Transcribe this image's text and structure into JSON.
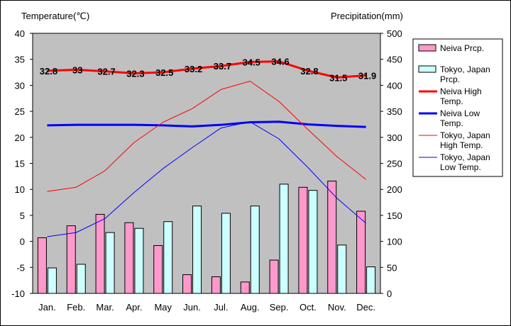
{
  "chart_data": {
    "type": "bar+line",
    "y_left_label": "Temperature(℃)",
    "y_right_label": "Precipitation(mm)",
    "categories": [
      "Jan.",
      "Feb.",
      "Mar.",
      "Apr.",
      "May",
      "Jun.",
      "Jul.",
      "Aug.",
      "Sep.",
      "Oct.",
      "Nov.",
      "Dec."
    ],
    "y_left_range": [
      -10,
      40
    ],
    "y_left_ticks": [
      "40",
      "35",
      "30",
      "25",
      "20",
      "15",
      "10",
      "5",
      "0",
      "-5",
      "-10"
    ],
    "y_right_range": [
      0,
      500
    ],
    "y_right_ticks": [
      "500",
      "450",
      "400",
      "350",
      "300",
      "250",
      "200",
      "150",
      "100",
      "50",
      "0"
    ],
    "grid": false,
    "legend_position": "right",
    "bars": [
      {
        "name": "Neiva Prcp.",
        "color": "#ff99cc",
        "values": [
          107,
          130,
          152,
          136,
          92,
          36,
          32,
          22,
          64,
          204,
          216,
          158
        ]
      },
      {
        "name": "Tokyo, Japan Prcp.",
        "color": "#ccffff",
        "values": [
          49,
          56,
          117,
          125,
          138,
          168,
          154,
          168,
          210,
          198,
          93,
          51
        ]
      }
    ],
    "lines": [
      {
        "name": "Neiva High Temp.",
        "color": "#ff0000",
        "width": 3,
        "values": [
          32.8,
          33,
          32.7,
          32.3,
          32.5,
          33.2,
          33.7,
          34.5,
          34.6,
          32.8,
          31.5,
          31.9
        ],
        "labels": [
          "32.8",
          "33",
          "32.7",
          "32.3",
          "32.5",
          "33.2",
          "33.7",
          "34.5",
          "34.6",
          "32.8",
          "31.5",
          "31.9"
        ]
      },
      {
        "name": "Neiva Low Temp.",
        "color": "#0000ff",
        "width": 3,
        "values": [
          22.3,
          22.4,
          22.4,
          22.4,
          22.3,
          22.1,
          22.4,
          22.9,
          23.0,
          22.5,
          22.2,
          22.0
        ]
      },
      {
        "name": "Tokyo, Japan High Temp.",
        "color": "#ff0000",
        "width": 1,
        "values": [
          9.6,
          10.4,
          13.6,
          19.0,
          22.9,
          25.5,
          29.2,
          30.8,
          26.9,
          21.5,
          16.3,
          11.9
        ]
      },
      {
        "name": "Tokyo, Japan Low Temp.",
        "color": "#0000ff",
        "width": 1,
        "values": [
          0.9,
          1.7,
          4.4,
          9.4,
          14.0,
          18.0,
          21.8,
          23.0,
          19.7,
          14.2,
          8.3,
          3.5
        ]
      }
    ],
    "legend": [
      {
        "kind": "bar",
        "lines": [
          "Neiva Prcp."
        ],
        "color": "#ff99cc"
      },
      {
        "kind": "bar",
        "lines": [
          "Tokyo, Japan",
          "Prcp."
        ],
        "color": "#ccffff"
      },
      {
        "kind": "line",
        "lines": [
          "Neiva High",
          "Temp."
        ],
        "color": "#ff0000",
        "width": 3
      },
      {
        "kind": "line",
        "lines": [
          "Neiva Low",
          "Temp."
        ],
        "color": "#0000ff",
        "width": 3
      },
      {
        "kind": "line",
        "lines": [
          "Tokyo, Japan",
          "High Temp."
        ],
        "color": "#ff0000",
        "width": 1
      },
      {
        "kind": "line",
        "lines": [
          "Tokyo, Japan",
          "Low Temp."
        ],
        "color": "#0000ff",
        "width": 1
      }
    ]
  }
}
